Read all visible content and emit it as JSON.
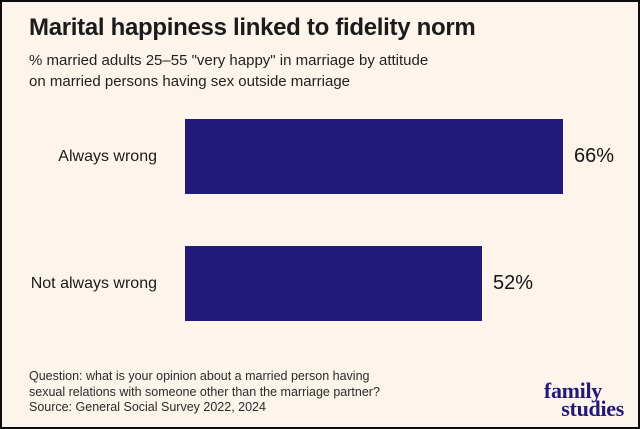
{
  "header": {
    "title": "Marital happiness linked to fidelity norm",
    "subtitle_lines": [
      "% married adults 25–55 \"very happy\" in marriage by attitude",
      "on married persons having sex outside marriage"
    ]
  },
  "chart_data": {
    "type": "bar",
    "orientation": "horizontal",
    "title": "Marital happiness linked to fidelity norm",
    "subtitle": "% married adults 25–55 \"very happy\" in marriage by attitude on married persons having sex outside marriage",
    "categories": [
      "Always wrong",
      "Not always wrong"
    ],
    "values": [
      66,
      52
    ],
    "value_labels": [
      "66%",
      "52%"
    ],
    "unit": "%",
    "xlim": [
      0,
      66
    ],
    "grid": false,
    "legend": false,
    "bar_color": "#211a7a"
  },
  "footer": {
    "note_lines": [
      "Question: what is your opinion about a married person having",
      "sexual relations with someone other than the marriage partner?",
      "Source: General Social Survey 2022, 2024"
    ]
  },
  "logo": {
    "line1": "family",
    "line2": "studies"
  },
  "colors": {
    "background": "#fdf4ec",
    "border": "#0d0d0d",
    "bar": "#211a7a",
    "text": "#1b1b1b",
    "logo_navy": "#221a77"
  }
}
